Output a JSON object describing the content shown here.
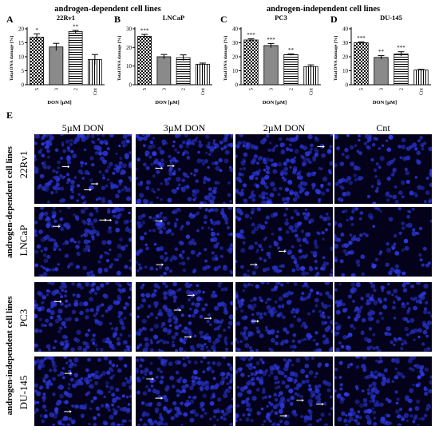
{
  "figure": {
    "group_titles": [
      "androgen-dependent cell lines",
      "androgen-independent cell lines"
    ],
    "panel_letters": [
      "A",
      "B",
      "C",
      "D",
      "E"
    ],
    "image_columns": [
      "5µM DON",
      "3µM DON",
      "2µM DON",
      "Cnt"
    ],
    "image_row_groups": [
      "androgen-dependent cell lines",
      "androgen-independent cell lines"
    ],
    "image_rows": [
      "22Rv1",
      "LNCaP",
      "PC3",
      "DU-145"
    ],
    "colors": {
      "micro_background": "#03021a",
      "nuclei": "#2a35d8",
      "arrow": "#ffffff"
    }
  },
  "chart_data": [
    {
      "type": "bar",
      "letter": "A",
      "title": "22Rv1",
      "ylabel": "Total DNA damage [%]",
      "xlabel": "DON [µM]",
      "categories": [
        "5",
        "3",
        "2",
        "Cnt"
      ],
      "values": [
        17,
        13.5,
        19,
        9
      ],
      "errors": [
        1.2,
        1.3,
        0.4,
        1.8
      ],
      "patterns": [
        "checker",
        "gray",
        "hlines",
        "vlines"
      ],
      "significance": [
        "*",
        "",
        "**",
        ""
      ],
      "ylim": [
        0,
        20
      ],
      "yticks": [
        0,
        5,
        10,
        15,
        20
      ]
    },
    {
      "type": "bar",
      "letter": "B",
      "title": "LNCaP",
      "ylabel": "Total DNA damage [%]",
      "xlabel": "DON [µM]",
      "categories": [
        "5",
        "3",
        "2",
        "Cnt"
      ],
      "values": [
        26,
        15,
        14.5,
        11
      ],
      "errors": [
        1,
        1.2,
        1.5,
        0.6
      ],
      "patterns": [
        "checker",
        "gray",
        "hlines",
        "vlines"
      ],
      "significance": [
        "***",
        "",
        "",
        ""
      ],
      "ylim": [
        0,
        30
      ],
      "yticks": [
        0,
        10,
        20,
        30
      ]
    },
    {
      "type": "bar",
      "letter": "C",
      "title": "PC3",
      "ylabel": "Total DNA damage [%]",
      "xlabel": "DON [µM]",
      "categories": [
        "5",
        "3",
        "2",
        "Cnt"
      ],
      "values": [
        32,
        28,
        21.5,
        13
      ],
      "errors": [
        0.8,
        1.5,
        0.5,
        1.2
      ],
      "patterns": [
        "checker",
        "gray",
        "hlines",
        "vlines"
      ],
      "significance": [
        "***",
        "***",
        "**",
        ""
      ],
      "ylim": [
        0,
        40
      ],
      "yticks": [
        0,
        10,
        20,
        30,
        40
      ]
    },
    {
      "type": "bar",
      "letter": "D",
      "title": "DU-145",
      "ylabel": "Total DNA damage [%]",
      "xlabel": "DON [µM]",
      "categories": [
        "5",
        "3",
        "2",
        "Cnt"
      ],
      "values": [
        30,
        19.5,
        22,
        10.5
      ],
      "errors": [
        0.6,
        1.3,
        1.6,
        0.5
      ],
      "patterns": [
        "checker",
        "gray",
        "hlines",
        "vlines"
      ],
      "significance": [
        "***",
        "**",
        "***",
        ""
      ],
      "ylim": [
        0,
        40
      ],
      "yticks": [
        0,
        10,
        20,
        30,
        40
      ]
    }
  ]
}
